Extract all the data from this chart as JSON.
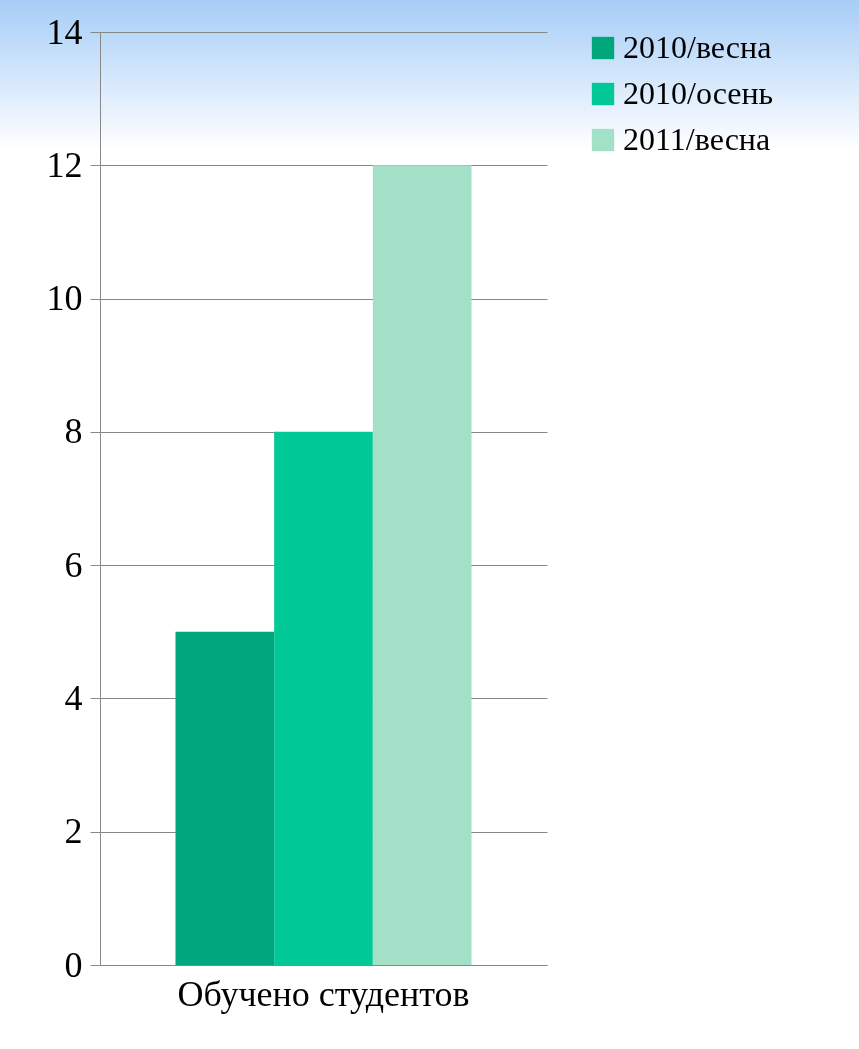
{
  "chart_data": {
    "type": "bar",
    "categories": [
      "Обучено студентов"
    ],
    "series": [
      {
        "name": "2010/весна",
        "color": "#00a77d",
        "values": [
          5
        ]
      },
      {
        "name": "2010/осень",
        "color": "#00c897",
        "values": [
          8
        ]
      },
      {
        "name": "2011/весна",
        "color": "#a2e0c7",
        "values": [
          12
        ]
      }
    ],
    "ylim": [
      0,
      14
    ],
    "yticks": [
      0,
      2,
      4,
      6,
      8,
      10,
      12,
      14
    ],
    "grid": "y",
    "legend": "right"
  }
}
